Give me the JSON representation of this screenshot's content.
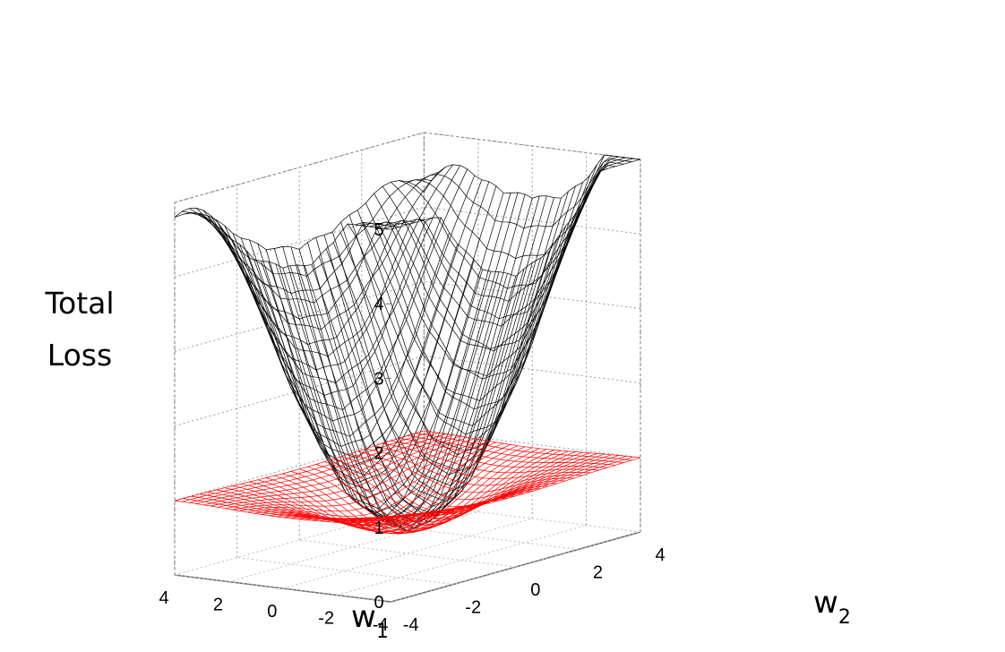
{
  "chart_data": {
    "type": "surface3d",
    "title": "",
    "xlabel": "w1",
    "xlabel_base": "w",
    "xlabel_sub": "1",
    "ylabel": "w2",
    "ylabel_base": "w",
    "ylabel_sub": "2",
    "zlabel_lines": [
      "Total",
      "Loss"
    ],
    "xlim": [
      -4,
      4
    ],
    "ylim": [
      -4,
      4
    ],
    "zlim": [
      0,
      5
    ],
    "x_ticks": [
      "4",
      "2",
      "0",
      "-2",
      "-4"
    ],
    "y_ticks": [
      "-4",
      "-2",
      "0",
      "2",
      "4"
    ],
    "z_ticks": [
      "0",
      "1",
      "2",
      "3",
      "4",
      "5"
    ],
    "grid": true,
    "series": [
      {
        "color": "#000000",
        "style": "wireframe",
        "x": [
          -4,
          -3,
          -2,
          -1,
          0,
          1,
          2,
          3,
          4
        ],
        "z_at_w2_0": [
          3.9,
          2.6,
          1.3,
          0.5,
          0.3,
          0.5,
          1.3,
          2.6,
          3.9
        ],
        "z_at_w1_0": [
          4.3,
          2.9,
          1.5,
          0.6,
          0.3,
          0.6,
          1.5,
          2.9,
          4.3
        ],
        "corners": {
          "w1_4_w2_-4": 3.9,
          "w1_-4_w2_4": 4.6,
          "w1_-4_w2_-4": 5.2,
          "w1_4_w2_4": 3.3
        }
      },
      {
        "color": "#ff0000",
        "style": "wireframe",
        "plateau": 1.0,
        "min": 0.3
      }
    ]
  }
}
